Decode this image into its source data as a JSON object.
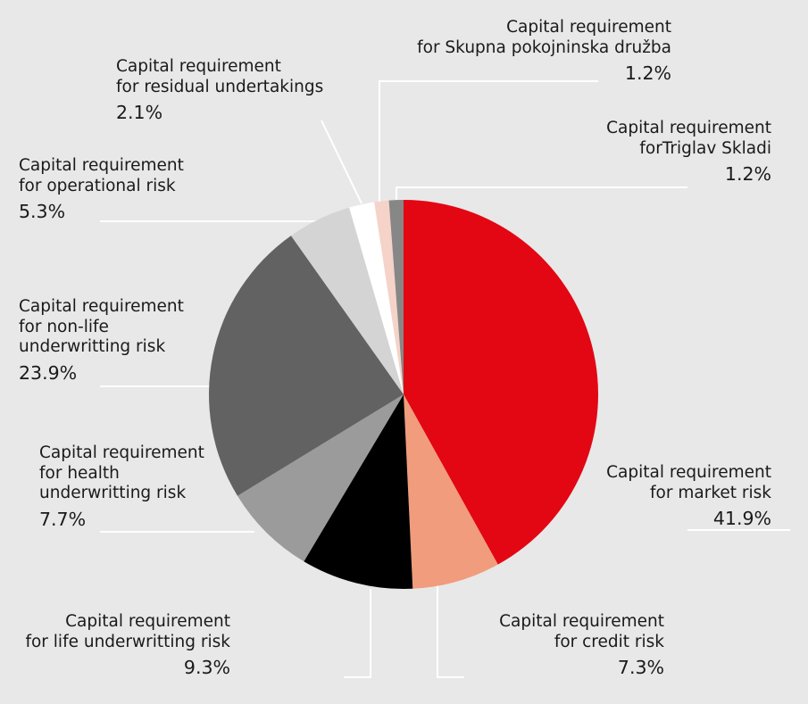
{
  "chart_data": {
    "type": "pie",
    "start_angle_deg": 0,
    "direction": "clockwise",
    "slices": [
      {
        "label_lines": [
          "Capital requirement",
          "for market risk"
        ],
        "value": 41.9,
        "value_label": "41.9%",
        "color": "#e30613"
      },
      {
        "label_lines": [
          "Capital requirement",
          "for credit risk"
        ],
        "value": 7.3,
        "value_label": "7.3%",
        "color": "#f19c7c"
      },
      {
        "label_lines": [
          "Capital requirement",
          "for life underwritting risk"
        ],
        "value": 9.3,
        "value_label": "9.3%",
        "color": "#000000"
      },
      {
        "label_lines": [
          "Capital requirement",
          "for health",
          "underwritting risk"
        ],
        "value": 7.7,
        "value_label": "7.7%",
        "color": "#9b9b9b"
      },
      {
        "label_lines": [
          "Capital requirement",
          "for non-life",
          "underwritting risk"
        ],
        "value": 23.9,
        "value_label": "23.9%",
        "color": "#636262"
      },
      {
        "label_lines": [
          "Capital requirement",
          "for operational risk"
        ],
        "value": 5.3,
        "value_label": "5.3%",
        "color": "#d4d4d4"
      },
      {
        "label_lines": [
          "Capital requirement",
          "for residual undertakings"
        ],
        "value": 2.1,
        "value_label": "2.1%",
        "color": "#ffffff"
      },
      {
        "label_lines": [
          "Capital requirement",
          "for Skupna pokojninska družba"
        ],
        "value": 1.2,
        "value_label": "1.2%",
        "color": "#f5d3c8"
      },
      {
        "label_lines": [
          "Capital requirement",
          "forTriglav Skladi"
        ],
        "value": 1.2,
        "value_label": "1.2%",
        "color": "#878787"
      }
    ]
  }
}
